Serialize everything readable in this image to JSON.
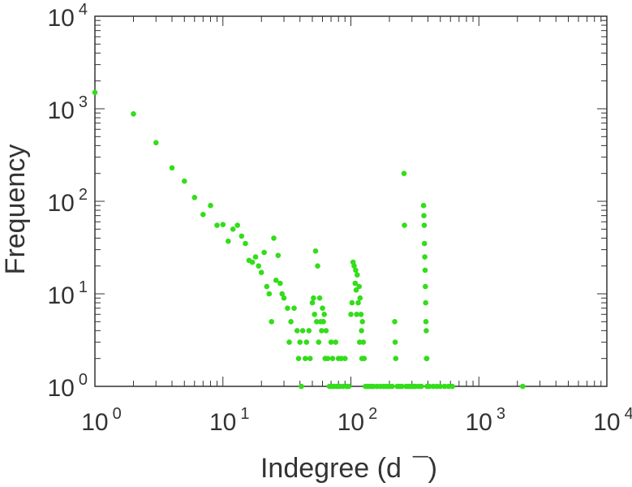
{
  "chart_data": {
    "type": "scatter",
    "title": "",
    "xlabel": "Indegree (d",
    "xlabel_suffix": "¯)",
    "ylabel": "Frequency",
    "xscale": "log",
    "yscale": "log",
    "xlim": [
      1,
      10000
    ],
    "ylim": [
      1,
      10000
    ],
    "grid": false,
    "marker_color": "#33dd1a",
    "x_ticks": [
      {
        "base": "10",
        "exp": "0",
        "value": 1
      },
      {
        "base": "10",
        "exp": "1",
        "value": 10
      },
      {
        "base": "10",
        "exp": "2",
        "value": 100
      },
      {
        "base": "10",
        "exp": "3",
        "value": 1000
      },
      {
        "base": "10",
        "exp": "4",
        "value": 10000
      }
    ],
    "y_ticks": [
      {
        "base": "10",
        "exp": "0",
        "value": 1
      },
      {
        "base": "10",
        "exp": "1",
        "value": 10
      },
      {
        "base": "10",
        "exp": "2",
        "value": 100
      },
      {
        "base": "10",
        "exp": "3",
        "value": 1000
      },
      {
        "base": "10",
        "exp": "4",
        "value": 10000
      }
    ],
    "points": [
      [
        1,
        1500
      ],
      [
        2,
        880
      ],
      [
        3,
        430
      ],
      [
        4,
        230
      ],
      [
        5,
        165
      ],
      [
        6,
        110
      ],
      [
        7,
        72
      ],
      [
        8,
        90
      ],
      [
        9,
        55
      ],
      [
        10,
        56
      ],
      [
        11,
        37
      ],
      [
        12,
        50
      ],
      [
        13,
        55
      ],
      [
        14,
        42
      ],
      [
        15,
        35
      ],
      [
        16,
        23
      ],
      [
        17,
        22
      ],
      [
        18,
        25
      ],
      [
        19,
        20
      ],
      [
        20,
        17
      ],
      [
        21,
        28
      ],
      [
        22,
        12
      ],
      [
        23,
        10
      ],
      [
        24,
        5
      ],
      [
        25,
        40
      ],
      [
        26,
        14
      ],
      [
        27,
        26
      ],
      [
        28,
        13
      ],
      [
        29,
        10
      ],
      [
        30,
        9
      ],
      [
        32,
        7
      ],
      [
        33,
        3
      ],
      [
        34,
        5
      ],
      [
        36,
        7
      ],
      [
        38,
        4
      ],
      [
        39,
        2
      ],
      [
        40,
        3
      ],
      [
        41,
        1
      ],
      [
        42,
        4
      ],
      [
        44,
        2
      ],
      [
        45,
        3
      ],
      [
        47,
        4
      ],
      [
        48,
        2
      ],
      [
        50,
        8
      ],
      [
        51,
        9
      ],
      [
        52,
        6
      ],
      [
        53,
        29
      ],
      [
        54,
        5
      ],
      [
        55,
        20
      ],
      [
        56,
        3
      ],
      [
        57,
        9
      ],
      [
        58,
        5
      ],
      [
        59,
        4
      ],
      [
        60,
        7
      ],
      [
        61,
        5
      ],
      [
        62,
        6
      ],
      [
        63,
        2
      ],
      [
        64,
        4
      ],
      [
        66,
        2
      ],
      [
        68,
        1
      ],
      [
        70,
        3
      ],
      [
        71,
        1
      ],
      [
        72,
        2
      ],
      [
        74,
        1
      ],
      [
        76,
        3
      ],
      [
        78,
        1
      ],
      [
        80,
        2
      ],
      [
        82,
        1
      ],
      [
        84,
        2
      ],
      [
        87,
        1
      ],
      [
        90,
        2
      ],
      [
        93,
        1
      ],
      [
        96,
        1
      ],
      [
        100,
        6
      ],
      [
        102,
        8
      ],
      [
        104,
        22
      ],
      [
        106,
        20
      ],
      [
        108,
        13
      ],
      [
        109,
        18
      ],
      [
        110,
        11
      ],
      [
        111,
        6
      ],
      [
        112,
        16
      ],
      [
        114,
        8
      ],
      [
        116,
        12
      ],
      [
        117,
        3
      ],
      [
        118,
        9
      ],
      [
        120,
        6
      ],
      [
        121,
        4
      ],
      [
        122,
        2
      ],
      [
        123,
        5
      ],
      [
        125,
        3
      ],
      [
        127,
        2
      ],
      [
        130,
        1
      ],
      [
        135,
        1
      ],
      [
        140,
        1
      ],
      [
        145,
        1
      ],
      [
        150,
        1
      ],
      [
        160,
        1
      ],
      [
        170,
        1
      ],
      [
        180,
        1
      ],
      [
        190,
        1
      ],
      [
        200,
        1
      ],
      [
        210,
        1
      ],
      [
        220,
        5
      ],
      [
        222,
        3
      ],
      [
        224,
        2
      ],
      [
        230,
        1
      ],
      [
        240,
        1
      ],
      [
        250,
        1
      ],
      [
        260,
        200
      ],
      [
        262,
        55
      ],
      [
        270,
        1
      ],
      [
        280,
        1
      ],
      [
        290,
        1
      ],
      [
        300,
        1
      ],
      [
        310,
        1
      ],
      [
        320,
        1
      ],
      [
        340,
        1
      ],
      [
        355,
        1
      ],
      [
        370,
        90
      ],
      [
        372,
        70
      ],
      [
        374,
        55
      ],
      [
        376,
        35
      ],
      [
        378,
        25
      ],
      [
        380,
        18
      ],
      [
        382,
        12
      ],
      [
        384,
        8
      ],
      [
        386,
        5
      ],
      [
        388,
        4
      ],
      [
        390,
        2
      ],
      [
        392,
        2
      ],
      [
        394,
        1
      ],
      [
        410,
        1
      ],
      [
        440,
        1
      ],
      [
        470,
        1
      ],
      [
        500,
        1
      ],
      [
        540,
        1
      ],
      [
        580,
        1
      ],
      [
        620,
        1
      ],
      [
        2200,
        1
      ]
    ]
  }
}
